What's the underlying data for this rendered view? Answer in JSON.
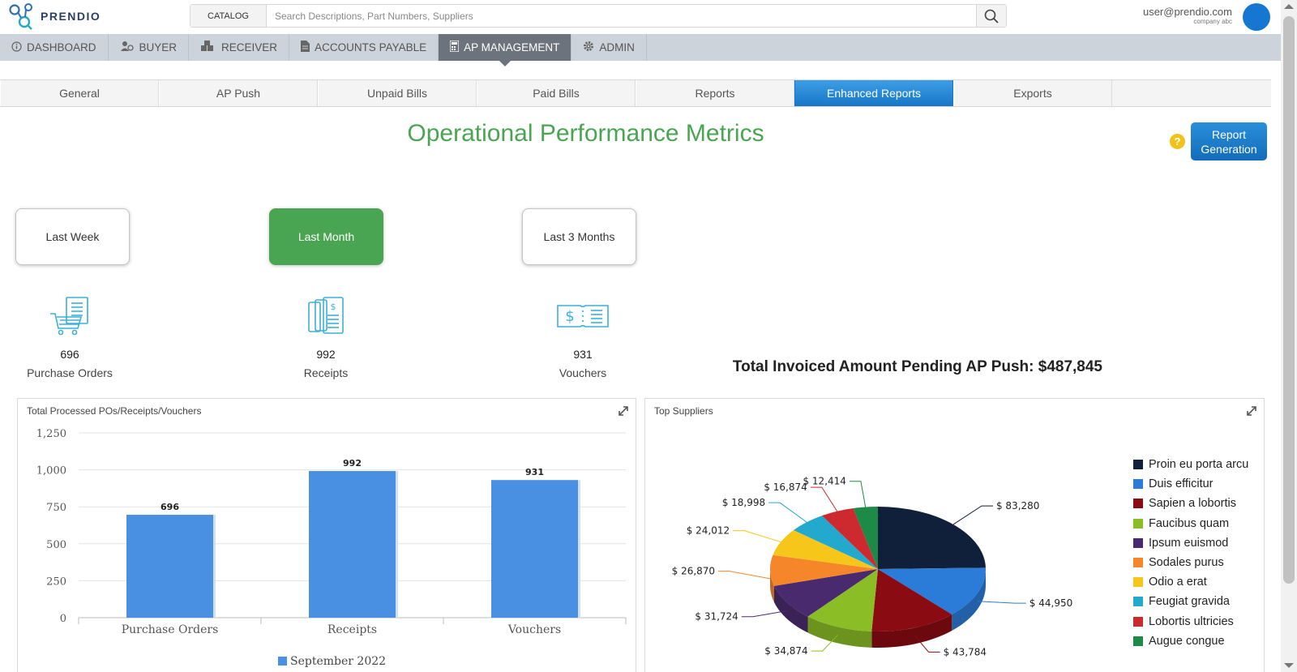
{
  "header": {
    "logo_text": "PRENDIO",
    "catalog_label": "CATALOG",
    "search_placeholder": "Search Descriptions, Part Numbers, Suppliers",
    "user_email": "user@prendio.com",
    "user_company": "company abc"
  },
  "main_nav": [
    {
      "label": "DASHBOARD",
      "icon": "info-icon"
    },
    {
      "label": "BUYER",
      "icon": "buyer-icon"
    },
    {
      "label": "RECEIVER",
      "icon": "receiver-icon"
    },
    {
      "label": "ACCOUNTS PAYABLE",
      "icon": "document-icon"
    },
    {
      "label": "AP MANAGEMENT",
      "icon": "calculator-icon",
      "active": true
    },
    {
      "label": "ADMIN",
      "icon": "gear-icon"
    }
  ],
  "sub_tabs": [
    {
      "label": "General"
    },
    {
      "label": "AP Push"
    },
    {
      "label": "Unpaid Bills"
    },
    {
      "label": "Paid Bills"
    },
    {
      "label": "Reports"
    },
    {
      "label": "Enhanced Reports",
      "active": true
    },
    {
      "label": "Exports"
    }
  ],
  "page": {
    "title": "Operational Performance Metrics",
    "help_label": "?",
    "report_button": "Report Generation"
  },
  "periods": [
    {
      "label": "Last Week"
    },
    {
      "label": "Last Month",
      "active": true
    },
    {
      "label": "Last 3 Months"
    }
  ],
  "metrics": [
    {
      "value": "696",
      "label": "Purchase Orders",
      "icon": "shopping-cart-document-icon"
    },
    {
      "value": "992",
      "label": "Receipts",
      "icon": "receipts-icon"
    },
    {
      "value": "931",
      "label": "Vouchers",
      "icon": "voucher-icon"
    }
  ],
  "pending_text": "Total Invoiced Amount Pending AP Push: $487,845",
  "bar_panel": {
    "title": "Total Processed POs/Receipts/Vouchers"
  },
  "pie_panel": {
    "title": "Top Suppliers"
  },
  "colors": {
    "accent_green": "#4aa552",
    "accent_blue": "#1976c8",
    "bar_blue": "#4a90e2",
    "nav_active": "#6c737d"
  },
  "chart_data": [
    {
      "type": "bar",
      "title": "Total Processed POs/Receipts/Vouchers",
      "categories": [
        "Purchase Orders",
        "Receipts",
        "Vouchers"
      ],
      "y_ticks": [
        "0",
        "250",
        "500",
        "750",
        "1,000",
        "1,250"
      ],
      "ylim": [
        0,
        1250
      ],
      "grid": true,
      "legend_position": "bottom",
      "series": [
        {
          "name": "September 2022",
          "values": [
            696,
            992,
            931
          ],
          "labels": [
            "696",
            "992",
            "931"
          ],
          "color": "#4a90e2"
        }
      ]
    },
    {
      "type": "pie",
      "title": "Top Suppliers",
      "legend_position": "right",
      "slices": [
        {
          "name": "Proin eu porta arcu",
          "value": 83280,
          "label": "$ 83,280",
          "color": "#10203a"
        },
        {
          "name": "Duis efficitur",
          "value": 44950,
          "label": "$ 44,950",
          "color": "#2b7bd8"
        },
        {
          "name": "Sapien a lobortis",
          "value": 43784,
          "label": "$ 43,784",
          "color": "#8a0c12"
        },
        {
          "name": "Faucibus quam",
          "value": 34874,
          "label": "$ 34,874",
          "color": "#8bbd26"
        },
        {
          "name": "Ipsum euismod",
          "value": 31724,
          "label": "$ 31,724",
          "color": "#4a2a6e"
        },
        {
          "name": "Sodales purus",
          "value": 26870,
          "label": "$ 26,870",
          "color": "#f6862a"
        },
        {
          "name": "Odio a erat",
          "value": 24012,
          "label": "$ 24,012",
          "color": "#f6c61a"
        },
        {
          "name": "Feugiat gravida",
          "value": 18998,
          "label": "$ 18,998",
          "color": "#22a9cd"
        },
        {
          "name": "Lobortis ultricies",
          "value": 16874,
          "label": "$ 16,874",
          "color": "#cc2a2e"
        },
        {
          "name": "Augue congue",
          "value": 12414,
          "label": "$ 12,414",
          "color": "#1d8a48"
        }
      ]
    }
  ]
}
